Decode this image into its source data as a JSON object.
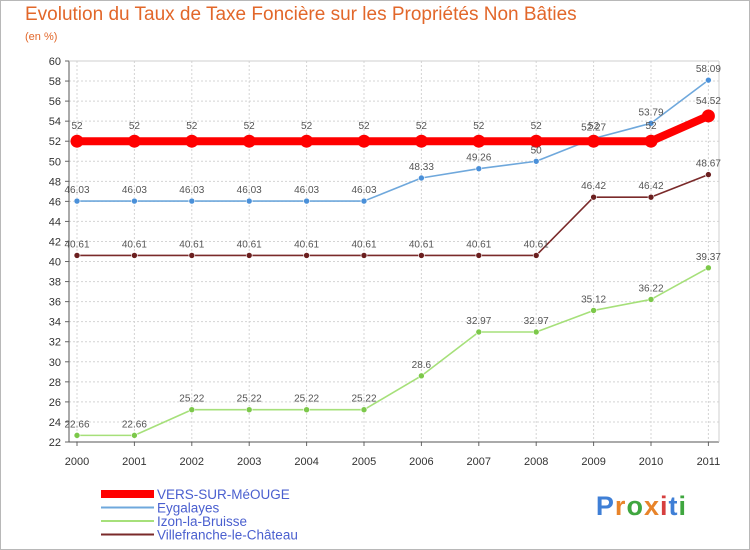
{
  "title": "Evolution du Taux de Taxe Foncière sur les Propriétés Non Bâties",
  "unit": "(en %)",
  "logo": {
    "letters": [
      "P",
      "r",
      "o",
      "x",
      "i",
      "t",
      "i"
    ],
    "colors": [
      "#3f7fd6",
      "#e8842a",
      "#3fa63f",
      "#e8842a",
      "#d63f3f",
      "#3f7fd6",
      "#3fa63f"
    ]
  },
  "chart_data": {
    "type": "line",
    "title": "Evolution du Taux de Taxe Foncière sur les Propriétés Non Bâties",
    "ylabel": "(en %)",
    "xlabel": "",
    "ylim": [
      22,
      60
    ],
    "yticks": [
      22,
      24,
      26,
      28,
      30,
      32,
      34,
      36,
      38,
      40,
      42,
      44,
      46,
      48,
      50,
      52,
      54,
      56,
      58,
      60
    ],
    "categories": [
      "2000",
      "2001",
      "2002",
      "2003",
      "2004",
      "2005",
      "2006",
      "2007",
      "2008",
      "2009",
      "2010",
      "2011"
    ],
    "grid": true,
    "legend_position": "bottom-left",
    "series": [
      {
        "name": "VERS-SUR-MéOUGE",
        "color": "#ff0000",
        "width": "thick",
        "values": [
          52,
          52,
          52,
          52,
          52,
          52,
          52,
          52,
          52,
          52,
          52,
          54.52
        ],
        "labels": [
          "52",
          "52",
          "52",
          "52",
          "52",
          "52",
          "52",
          "52",
          "52",
          "52",
          "52",
          "54.52"
        ]
      },
      {
        "name": "Eygalayes",
        "color": "#6fa8dc",
        "marker": "#4a90d9",
        "values": [
          46.03,
          46.03,
          46.03,
          46.03,
          46.03,
          46.03,
          48.33,
          49.26,
          50,
          52.27,
          53.79,
          58.09
        ],
        "labels": [
          "46.03",
          "46.03",
          "46.03",
          "46.03",
          "46.03",
          "46.03",
          "48.33",
          "49.26",
          "50",
          "52.27",
          "53.79",
          "58.09"
        ]
      },
      {
        "name": "Izon-la-Bruisse",
        "color": "#a6e07a",
        "marker": "#7cc84a",
        "values": [
          22.66,
          22.66,
          25.22,
          25.22,
          25.22,
          25.22,
          28.6,
          32.97,
          32.97,
          35.12,
          36.22,
          39.37
        ],
        "labels": [
          "22.66",
          "22.66",
          "25.22",
          "25.22",
          "25.22",
          "25.22",
          "28.6",
          "32.97",
          "32.97",
          "35.12",
          "36.22",
          "39.37"
        ]
      },
      {
        "name": "Villefranche-le-Château",
        "color": "#7a2a2a",
        "marker": "#6b1f1f",
        "values": [
          40.61,
          40.61,
          40.61,
          40.61,
          40.61,
          40.61,
          40.61,
          40.61,
          40.61,
          46.42,
          46.42,
          48.67
        ],
        "labels": [
          "40.61",
          "40.61",
          "40.61",
          "40.61",
          "40.61",
          "40.61",
          "40.61",
          "40.61",
          "40.61",
          "46.42",
          "46.42",
          "48.67"
        ]
      }
    ]
  }
}
